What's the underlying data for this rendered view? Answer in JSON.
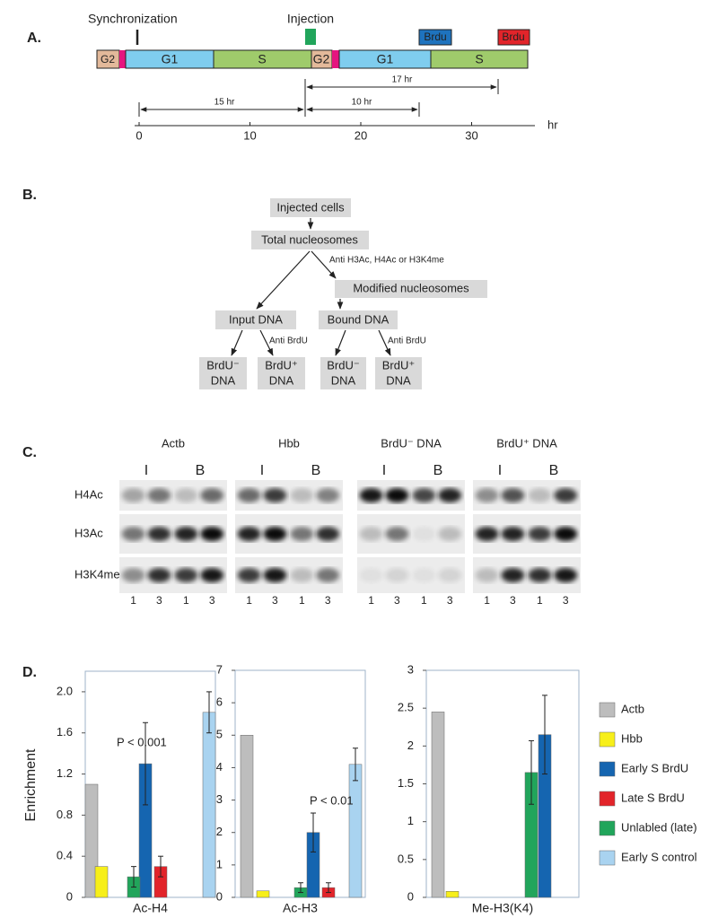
{
  "panel_a": {
    "label": "A.",
    "synchronization": "Synchronization",
    "injection": "Injection",
    "brdu_early": "Brdu",
    "brdu_late": "Brdu",
    "phases": [
      "G2",
      "G1",
      "S",
      "G2",
      "G1",
      "S"
    ],
    "spans": [
      "17 hr",
      "15 hr",
      "10 hr"
    ],
    "axis_ticks": [
      0,
      10,
      20,
      30
    ],
    "axis_unit": "hr"
  },
  "panel_b": {
    "label": "B.",
    "nodes": [
      "Injected cells",
      "Total nucleosomes",
      "Modified nucleosomes",
      "Input DNA",
      "Bound DNA"
    ],
    "leaves": [
      [
        "BrdU⁻",
        "DNA"
      ],
      [
        "BrdU⁺",
        "DNA"
      ],
      [
        "BrdU⁻",
        "DNA"
      ],
      [
        "BrdU⁺",
        "DNA"
      ]
    ],
    "edge_labels": [
      "Anti H3Ac, H4Ac or H3K4me",
      "Anti BrdU",
      "Anti BrdU"
    ]
  },
  "panel_c": {
    "label": "C.",
    "columns": [
      "Actb",
      "Hbb",
      "BrdU⁻ DNA",
      "BrdU⁺ DNA"
    ],
    "fractions": [
      "I",
      "B"
    ],
    "rows": [
      "H4Ac",
      "H3Ac",
      "H3K4me"
    ],
    "lanes": [
      1,
      3,
      1,
      3
    ]
  },
  "panel_d": {
    "label": "D."
  },
  "chart_data": [
    {
      "type": "bar",
      "ylabel": "Enrichment",
      "xlabel": "Ac-H4",
      "annotation": "P < 0.001",
      "ylim": [
        0,
        2.2
      ],
      "yticks": [
        0,
        0.4,
        0.8,
        1.2,
        1.6,
        {
          "value": 2,
          "label": "2.0"
        }
      ],
      "series": [
        {
          "name": "Actb",
          "color": "#bdbdbd",
          "values": [
            1.1
          ]
        },
        {
          "name": "Hbb",
          "color": "#f7ef1a",
          "values": [
            0.3
          ]
        },
        {
          "name": "Early S BrdU",
          "color": "#1565b0",
          "values": [
            1.3
          ],
          "errors": [
            0.4
          ]
        },
        {
          "name": "Late S BrdU",
          "color": "#e2242a",
          "values": [
            0.3
          ],
          "errors": [
            0.1
          ]
        },
        {
          "name": "Unlabled (late)",
          "color": "#21a55b",
          "values": [
            0.2
          ],
          "errors": [
            0.1
          ]
        },
        {
          "name": "Early S control",
          "color": "#a9d3f0",
          "values": [
            1.8
          ],
          "errors": [
            0.2
          ]
        }
      ]
    },
    {
      "type": "bar",
      "xlabel": "Ac-H3",
      "annotation": "P < 0.01",
      "ylim": [
        0,
        7
      ],
      "yticks": [
        0,
        1,
        2,
        3,
        4,
        5,
        6,
        7
      ],
      "series": [
        {
          "name": "Actb",
          "color": "#bdbdbd",
          "values": [
            5
          ]
        },
        {
          "name": "Hbb",
          "color": "#f7ef1a",
          "values": [
            0.2
          ]
        },
        {
          "name": "Early S BrdU",
          "color": "#1565b0",
          "values": [
            2
          ],
          "errors": [
            0.6
          ]
        },
        {
          "name": "Late S BrdU",
          "color": "#e2242a",
          "values": [
            0.3
          ],
          "errors": [
            0.15
          ]
        },
        {
          "name": "Unlabled (late)",
          "color": "#21a55b",
          "values": [
            0.3
          ],
          "errors": [
            0.15
          ]
        },
        {
          "name": "Early S control",
          "color": "#a9d3f0",
          "values": [
            4.1
          ],
          "errors": [
            0.5
          ]
        }
      ]
    },
    {
      "type": "bar",
      "xlabel": "Me-H3(K4)",
      "ylim": [
        0,
        3
      ],
      "yticks": [
        0,
        0.5,
        1,
        1.5,
        2,
        2.5,
        3
      ],
      "series": [
        {
          "name": "Actb",
          "color": "#bdbdbd",
          "values": [
            2.45
          ]
        },
        {
          "name": "Hbb",
          "color": "#f7ef1a",
          "values": [
            0.08
          ]
        },
        {
          "name": "Early S BrdU",
          "color": "#1565b0",
          "values": [
            2.15
          ],
          "errors": [
            0.52
          ]
        },
        {
          "name": "Unlabled (late)",
          "color": "#21a55b",
          "values": [
            1.65
          ],
          "errors": [
            0.42
          ]
        }
      ]
    }
  ]
}
